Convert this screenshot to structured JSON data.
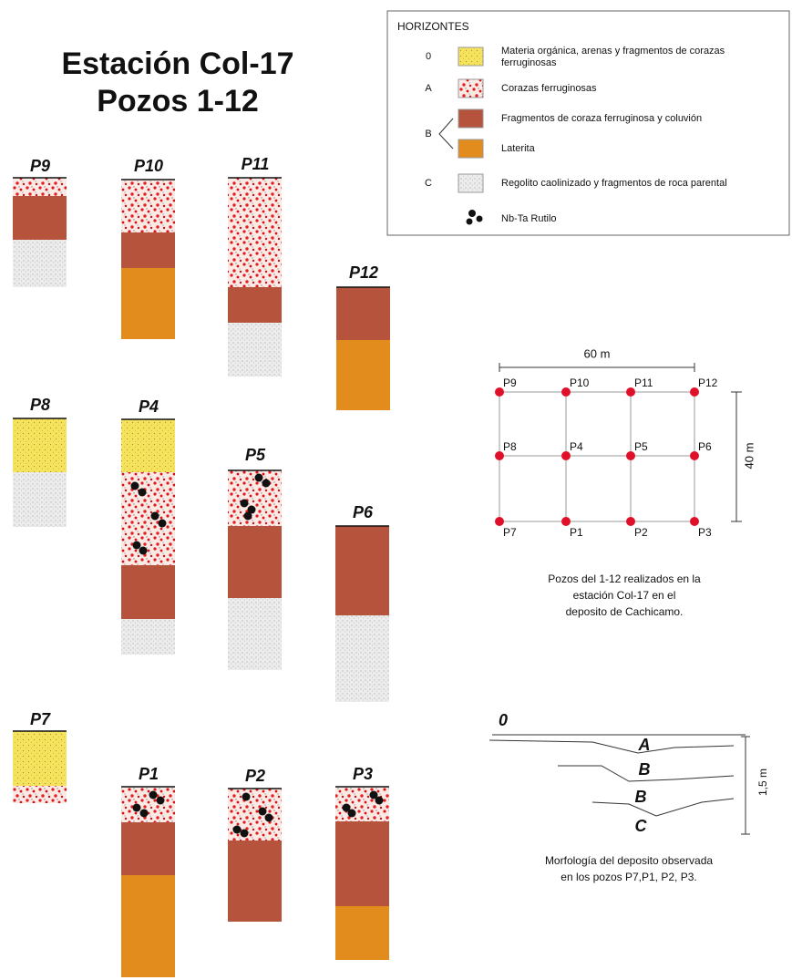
{
  "title": [
    "Estación Col-17",
    "Pozos 1-12"
  ],
  "legend": {
    "title": "HORIZONTES",
    "items": [
      {
        "code": "0",
        "text": [
          "Materia orgánica, arenas y fragmentos de corazas",
          "ferruginosas"
        ]
      },
      {
        "code": "A",
        "text": [
          "Corazas ferruginosas"
        ]
      },
      {
        "text": [
          "Fragmentos de coraza ferruginosa y coluvión"
        ]
      },
      {
        "text": [
          "Laterita"
        ]
      },
      {
        "code": "C",
        "text": [
          "Regolito caolinizado y fragmentos de roca parental"
        ]
      }
    ],
    "b_code": "B",
    "mineral": "Nb-Ta Rutilo"
  },
  "wells": [
    "P9",
    "P10",
    "P11",
    "P12",
    "P8",
    "P4",
    "P5",
    "P6",
    "P7",
    "P1",
    "P2",
    "P3"
  ],
  "grid_map": {
    "width_label": "60 m",
    "height_label": "40 m",
    "points": [
      [
        "P9",
        "P10",
        "P11",
        "P12"
      ],
      [
        "P8",
        "P4",
        "P5",
        "P6"
      ],
      [
        "P7",
        "P1",
        "P2",
        "P3"
      ]
    ],
    "caption": [
      "Pozos del 1-12 realizados en la",
      "estación Col-17 en el",
      "deposito de Cachicamo."
    ]
  },
  "morphology": {
    "labels": [
      "0",
      "A",
      "B",
      "B",
      "C"
    ],
    "thickness": "1,5 m",
    "caption": [
      "Morfología del deposito observada",
      "en los pozos P7,P1, P2, P3."
    ]
  }
}
